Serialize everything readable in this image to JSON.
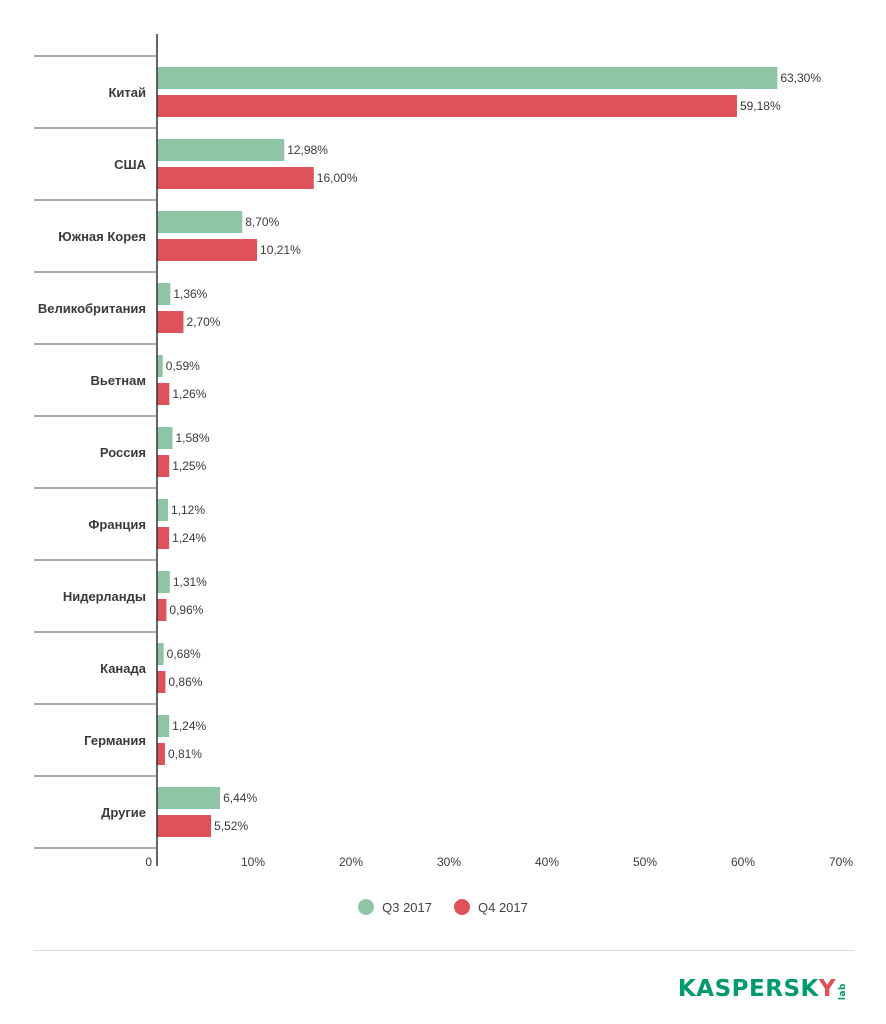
{
  "chart_data": {
    "type": "bar",
    "orientation": "horizontal",
    "categories": [
      "Китай",
      "США",
      "Южная Корея",
      "Великобритания",
      "Вьетнам",
      "Россия",
      "Франция",
      "Нидерланды",
      "Канада",
      "Германия",
      "Другие"
    ],
    "series": [
      {
        "name": "Q3 2017",
        "color": "#8fc5a4",
        "values": [
          63.3,
          12.98,
          8.7,
          1.36,
          0.59,
          1.58,
          1.12,
          1.31,
          0.68,
          1.24,
          6.44
        ],
        "labels": [
          "63,30%",
          "12,98%",
          "8,70%",
          "1,36%",
          "0,59%",
          "1,58%",
          "1,12%",
          "1,31%",
          "0,68%",
          "1,24%",
          "6,44%"
        ]
      },
      {
        "name": "Q4 2017",
        "color": "#e0525b",
        "values": [
          59.18,
          16.0,
          10.21,
          2.7,
          1.26,
          1.25,
          1.24,
          0.96,
          0.86,
          0.81,
          5.52
        ],
        "labels": [
          "59,18%",
          "16,00%",
          "10,21%",
          "2,70%",
          "1,26%",
          "1,25%",
          "1,24%",
          "0,96%",
          "0,86%",
          "0,81%",
          "5,52%"
        ]
      }
    ],
    "xlim": [
      0,
      70
    ],
    "ticks": [
      0,
      10,
      20,
      30,
      40,
      50,
      60,
      70
    ],
    "tick_labels": [
      "0",
      "10%",
      "20%",
      "30%",
      "40%",
      "50%",
      "60%",
      "70%"
    ],
    "legend_position": "bottom-center",
    "grid": false
  },
  "legend": {
    "q3_label": "Q3 2017",
    "q4_label": "Q4 2017"
  },
  "branding": {
    "logo_main": "KASPERSKY",
    "logo_sub": "lab",
    "logo_color": "#009a6e",
    "logo_accent": "#e0525b"
  }
}
